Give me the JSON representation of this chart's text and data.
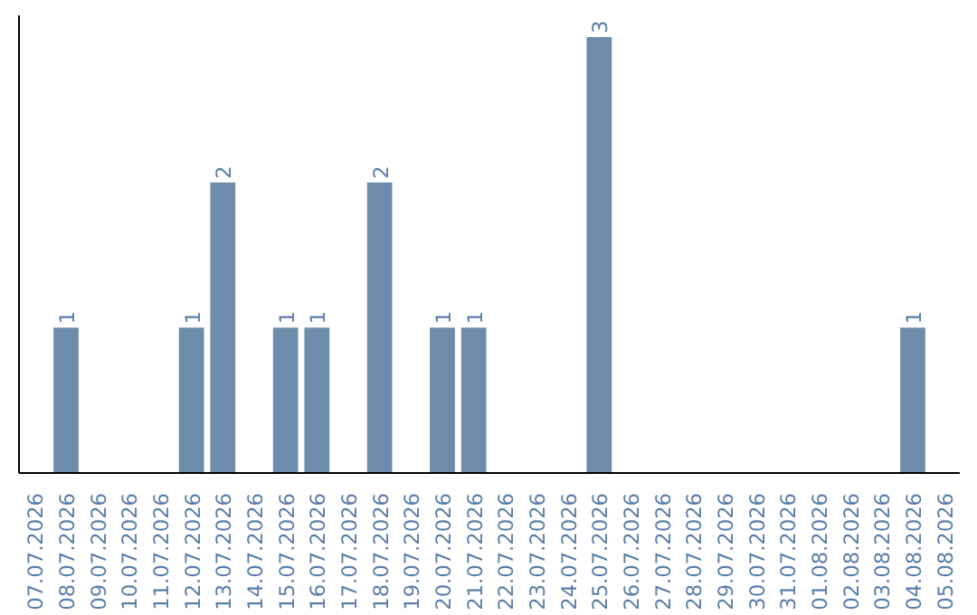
{
  "chart_data": {
    "type": "bar",
    "categories": [
      "07.07.2026",
      "08.07.2026",
      "09.07.2026",
      "10.07.2026",
      "11.07.2026",
      "12.07.2026",
      "13.07.2026",
      "14.07.2026",
      "15.07.2026",
      "16.07.2026",
      "17.07.2026",
      "18.07.2026",
      "19.07.2026",
      "20.07.2026",
      "21.07.2026",
      "22.07.2026",
      "23.07.2026",
      "24.07.2026",
      "25.07.2026",
      "26.07.2026",
      "27.07.2026",
      "28.07.2026",
      "29.07.2026",
      "30.07.2026",
      "31.07.2026",
      "01.08.2026",
      "02.08.2026",
      "03.08.2026",
      "04.08.2026",
      "05.08.2026"
    ],
    "values": [
      0,
      1,
      0,
      0,
      0,
      1,
      2,
      0,
      1,
      1,
      0,
      2,
      0,
      1,
      1,
      0,
      0,
      0,
      3,
      0,
      0,
      0,
      0,
      0,
      0,
      0,
      0,
      0,
      1,
      0
    ],
    "value_labels": [
      null,
      "1",
      null,
      null,
      null,
      "1",
      "2",
      null,
      "1",
      "1",
      null,
      "2",
      null,
      "1",
      "1",
      null,
      null,
      null,
      "3",
      null,
      null,
      null,
      null,
      null,
      null,
      null,
      null,
      null,
      "1",
      null
    ],
    "color": "#6d8cab",
    "tick_labels": "x",
    "grid": false
  }
}
